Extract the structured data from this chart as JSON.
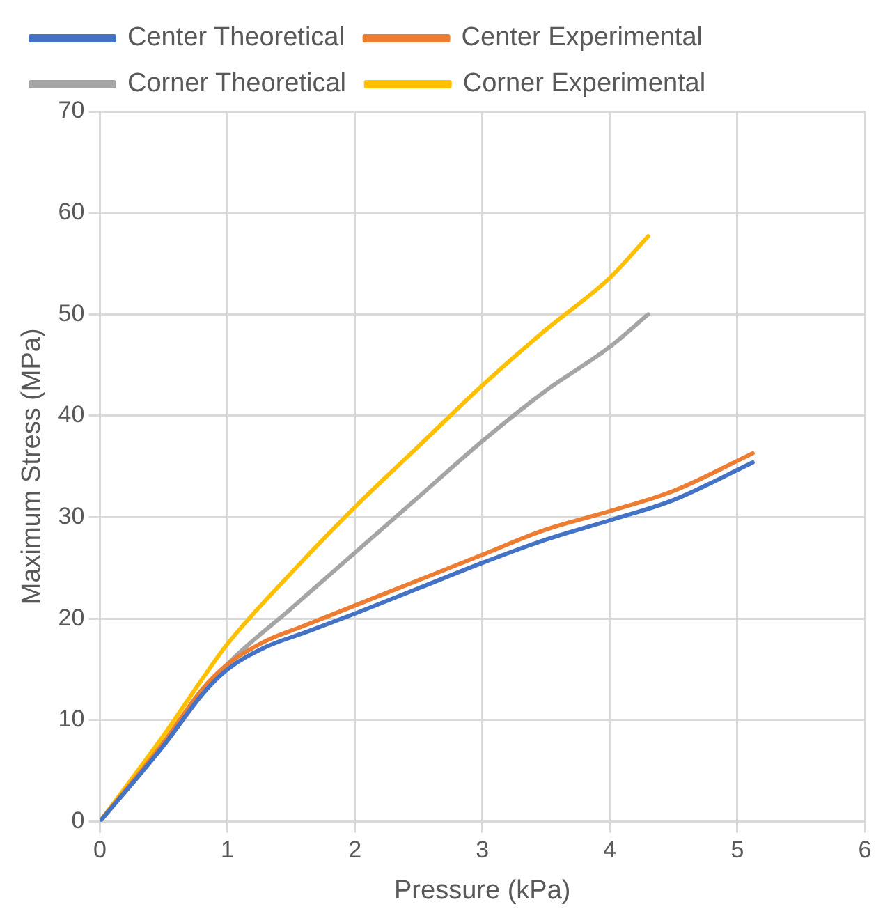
{
  "chart_data": {
    "type": "line",
    "xlabel": "Pressure (kPa)",
    "ylabel": "Maximum Stress (MPa)",
    "xlim": [
      0,
      6
    ],
    "xticks": [
      0,
      1,
      2,
      3,
      4,
      5,
      6
    ],
    "ylim": [
      0,
      70
    ],
    "yticks": [
      0,
      10,
      20,
      30,
      40,
      50,
      60,
      70
    ],
    "grid": true,
    "legend": "top",
    "marker": "none",
    "line_style": "solid",
    "series": [
      {
        "name": "Center Theoretical",
        "color": "#4472c4",
        "x": [
          0,
          0.5,
          0.8,
          1,
          1.3,
          1.6,
          2,
          2.5,
          3,
          3.5,
          4,
          4.5,
          5.12
        ],
        "values": [
          0,
          7.5,
          12.5,
          15,
          17.2,
          18.6,
          20.5,
          23,
          25.5,
          27.8,
          29.7,
          31.7,
          35.4
        ]
      },
      {
        "name": "Center Experimental",
        "color": "#ed7d31",
        "x": [
          0,
          0.5,
          0.8,
          1,
          1.3,
          1.6,
          2,
          2.5,
          3,
          3.5,
          4,
          4.5,
          5.12
        ],
        "values": [
          0,
          7.8,
          13,
          15.5,
          17.8,
          19.3,
          21.3,
          23.8,
          26.3,
          28.8,
          30.6,
          32.6,
          36.3
        ]
      },
      {
        "name": "Corner Theoretical",
        "color": "#a5a5a5",
        "x": [
          0,
          0.5,
          0.8,
          1,
          1.5,
          2,
          2.5,
          3,
          3.5,
          4,
          4.3
        ],
        "values": [
          0,
          7.5,
          12.5,
          15.5,
          21,
          26.5,
          32,
          37.5,
          42.5,
          46.8,
          50
        ]
      },
      {
        "name": "Corner Experimental",
        "color": "#ffc000",
        "x": [
          0,
          0.5,
          0.8,
          1,
          1.5,
          2,
          2.5,
          3,
          3.5,
          4,
          4.3
        ],
        "values": [
          0,
          8.5,
          14,
          17.5,
          24.5,
          31,
          37,
          43,
          48.5,
          53.6,
          57.7
        ]
      }
    ]
  }
}
